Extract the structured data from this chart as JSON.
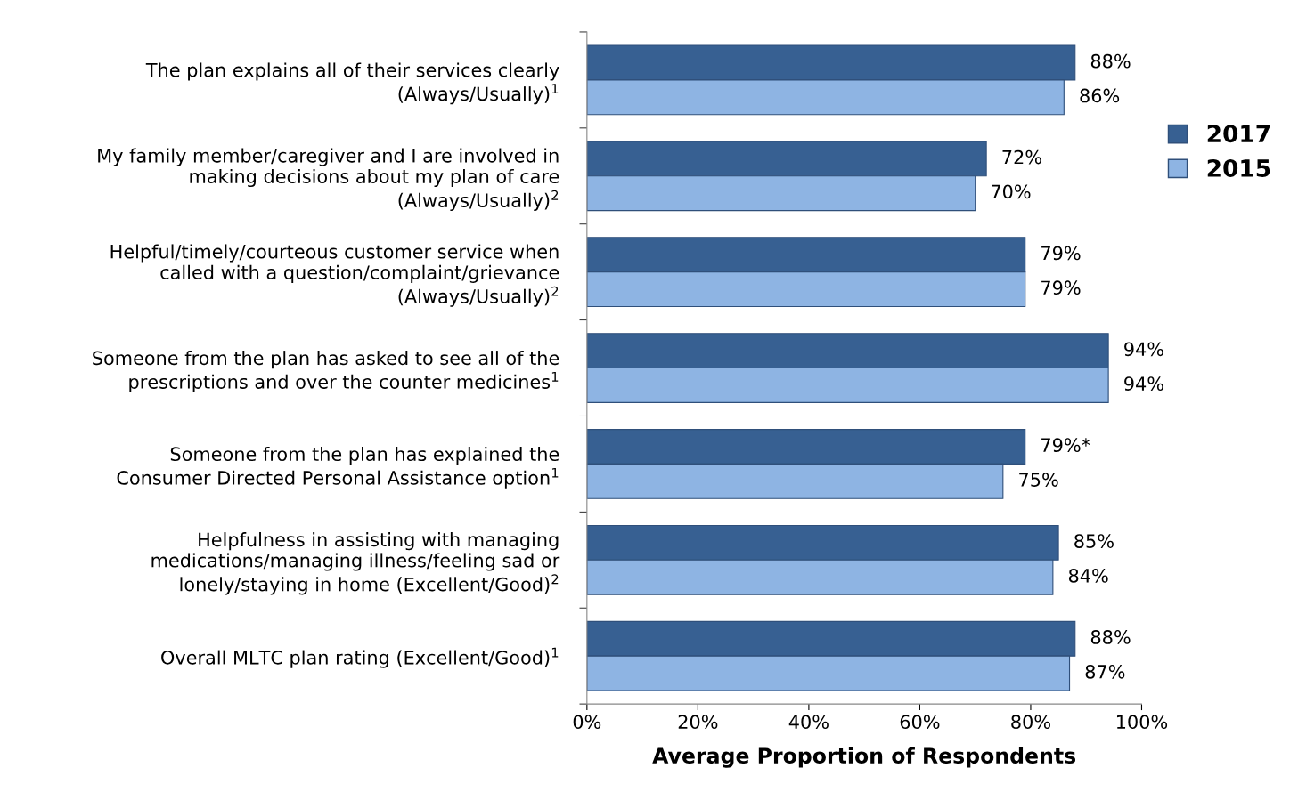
{
  "chart_data": {
    "type": "bar",
    "orientation": "horizontal",
    "xlabel": "Average Proportion of Respondents",
    "categories": [
      "The plan explains all of their services clearly\n(Always/Usually)$^{1}$",
      "My family member/caregiver and I are involved in\nmaking decisions about my plan of care\n(Always/Usually)$^{2}$",
      "Helpful/timely/courteous customer service when\ncalled with a question/complaint/grievance\n(Always/Usually)$^{2}$",
      "Someone from the plan has asked to see all of the\nprescriptions and over the counter medicines$^{1}$",
      "Someone from the plan has explained the\nConsumer Directed Personal Assistance option$^{1}$",
      "Helpfulness in assisting with managing\nmedications/managing illness/feeling sad or\nlonely/staying in home (Excellent/Good)$^{2}$",
      "Overall MLTC plan rating (Excellent/Good)$^{1}$"
    ],
    "series": [
      {
        "name": "2017",
        "color": "#376092",
        "values": [
          88,
          72,
          79,
          94,
          79,
          85,
          88
        ],
        "value_labels": [
          "88%",
          "72%",
          "79%",
          "94%",
          "79%*",
          "85%",
          "88%"
        ]
      },
      {
        "name": "2015",
        "color": "#8eb4e3",
        "values": [
          86,
          70,
          79,
          94,
          75,
          84,
          87
        ],
        "value_labels": [
          "86%",
          "70%",
          "79%",
          "94%",
          "75%",
          "84%",
          "87%"
        ]
      }
    ],
    "xlim": [
      0,
      100
    ],
    "xticks": [
      {
        "value": 0,
        "label": "0%"
      },
      {
        "value": 20,
        "label": "20%"
      },
      {
        "value": 40,
        "label": "40%"
      },
      {
        "value": 60,
        "label": "60%"
      },
      {
        "value": 80,
        "label": "80%"
      },
      {
        "value": 100,
        "label": "100%"
      }
    ],
    "grid": false,
    "legend": "right"
  }
}
